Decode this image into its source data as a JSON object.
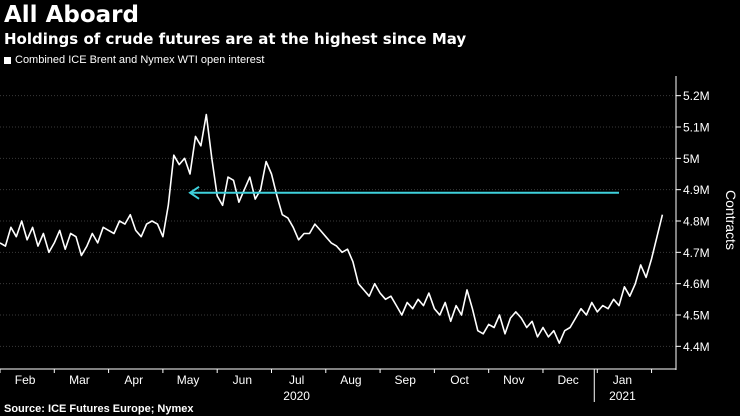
{
  "header": {
    "title": "All Aboard",
    "subtitle": "Holdings of crude futures are at the highest since May"
  },
  "legend": {
    "label": "Combined ICE Brent and Nymex WTI open interest"
  },
  "source": "Source: ICE Futures Europe; Nymex",
  "colors": {
    "background": "#000000",
    "line": "#ffffff",
    "arrow": "#3fd1dc",
    "grid": "#3a3a3a"
  },
  "chart_data": {
    "type": "line",
    "title": "All Aboard",
    "subtitle": "Holdings of crude futures are at the highest since May",
    "ylabel": "Contracts",
    "ylim": [
      4.35,
      5.25
    ],
    "yticks": [
      4.4,
      4.5,
      4.6,
      4.7,
      4.8,
      4.9,
      5.0,
      5.1,
      5.2
    ],
    "ytick_labels": [
      "4.4M",
      "4.5M",
      "4.6M",
      "4.7M",
      "4.8M",
      "4.9M",
      "5M",
      "5.1M",
      "5.2M"
    ],
    "xlim": [
      0,
      12.45
    ],
    "month_labels": [
      "Feb",
      "Mar",
      "Apr",
      "May",
      "Jun",
      "Jul",
      "Aug",
      "Sep",
      "Oct",
      "Nov",
      "Dec",
      "Jan"
    ],
    "year_labels": [
      {
        "text": "2020",
        "month_index": 5
      },
      {
        "text": "2021",
        "month_index": 11
      }
    ],
    "annotation": {
      "type": "arrow",
      "from": [
        11.4,
        4.89
      ],
      "to": [
        3.5,
        4.89
      ]
    },
    "series": [
      {
        "name": "Combined ICE Brent and Nymex WTI open interest",
        "x": [
          0.0,
          0.1,
          0.2,
          0.3,
          0.4,
          0.5,
          0.6,
          0.7,
          0.8,
          0.9,
          1.0,
          1.1,
          1.2,
          1.3,
          1.4,
          1.5,
          1.6,
          1.7,
          1.8,
          1.9,
          2.0,
          2.1,
          2.2,
          2.3,
          2.4,
          2.5,
          2.6,
          2.7,
          2.8,
          2.9,
          3.0,
          3.1,
          3.2,
          3.3,
          3.4,
          3.5,
          3.6,
          3.7,
          3.8,
          3.9,
          4.0,
          4.1,
          4.2,
          4.3,
          4.4,
          4.5,
          4.6,
          4.7,
          4.8,
          4.9,
          5.0,
          5.1,
          5.2,
          5.3,
          5.4,
          5.5,
          5.6,
          5.7,
          5.8,
          5.9,
          6.0,
          6.1,
          6.2,
          6.3,
          6.4,
          6.5,
          6.6,
          6.7,
          6.8,
          6.9,
          7.0,
          7.1,
          7.2,
          7.3,
          7.4,
          7.5,
          7.6,
          7.7,
          7.8,
          7.9,
          8.0,
          8.1,
          8.2,
          8.3,
          8.4,
          8.5,
          8.6,
          8.7,
          8.8,
          8.9,
          9.0,
          9.1,
          9.2,
          9.3,
          9.4,
          9.5,
          9.6,
          9.7,
          9.8,
          9.9,
          10.0,
          10.1,
          10.2,
          10.3,
          10.4,
          10.5,
          10.6,
          10.7,
          10.8,
          10.9,
          11.0,
          11.1,
          11.2,
          11.3,
          11.4,
          11.5,
          11.6,
          11.7,
          11.8,
          11.9,
          12.0,
          12.1,
          12.2
        ],
        "values": [
          4.73,
          4.72,
          4.78,
          4.75,
          4.8,
          4.74,
          4.78,
          4.72,
          4.76,
          4.7,
          4.73,
          4.77,
          4.71,
          4.76,
          4.75,
          4.69,
          4.72,
          4.76,
          4.73,
          4.78,
          4.77,
          4.76,
          4.8,
          4.79,
          4.82,
          4.77,
          4.75,
          4.79,
          4.8,
          4.79,
          4.75,
          4.85,
          5.01,
          4.98,
          5.0,
          4.95,
          5.07,
          5.04,
          5.14,
          5.0,
          4.88,
          4.85,
          4.94,
          4.93,
          4.86,
          4.9,
          4.94,
          4.87,
          4.9,
          4.99,
          4.95,
          4.88,
          4.82,
          4.81,
          4.78,
          4.74,
          4.76,
          4.76,
          4.79,
          4.77,
          4.75,
          4.73,
          4.72,
          4.7,
          4.71,
          4.67,
          4.6,
          4.58,
          4.56,
          4.6,
          4.57,
          4.55,
          4.56,
          4.53,
          4.5,
          4.54,
          4.52,
          4.55,
          4.53,
          4.57,
          4.52,
          4.5,
          4.54,
          4.48,
          4.53,
          4.5,
          4.58,
          4.52,
          4.45,
          4.44,
          4.47,
          4.46,
          4.5,
          4.44,
          4.49,
          4.51,
          4.49,
          4.46,
          4.48,
          4.43,
          4.46,
          4.43,
          4.45,
          4.41,
          4.45,
          4.46,
          4.49,
          4.52,
          4.5,
          4.54,
          4.51,
          4.53,
          4.52,
          4.55,
          4.53,
          4.59,
          4.56,
          4.6,
          4.66,
          4.62,
          4.68,
          4.75,
          4.82
        ]
      }
    ]
  }
}
